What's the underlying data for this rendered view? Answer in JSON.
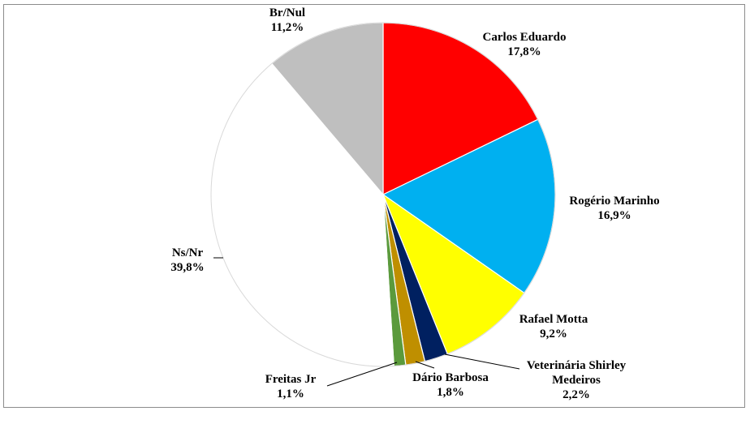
{
  "chart_data": {
    "type": "pie",
    "title": "",
    "start_angle_deg": 0,
    "direction": "clockwise",
    "slices": [
      {
        "key": "carlos",
        "label_lines": [
          "Carlos Eduardo",
          "17,8%"
        ],
        "value": 17.8,
        "color": "#ff0000"
      },
      {
        "key": "rogerio",
        "label_lines": [
          "Rogério Marinho",
          "16,9%"
        ],
        "value": 16.9,
        "color": "#00b0f0"
      },
      {
        "key": "rafael",
        "label_lines": [
          "Rafael Motta",
          "9,2%"
        ],
        "value": 9.2,
        "color": "#ffff00"
      },
      {
        "key": "shirley",
        "label_lines": [
          "Veterinária Shirley",
          "Medeiros",
          "2,2%"
        ],
        "value": 2.2,
        "color": "#002060"
      },
      {
        "key": "dario",
        "label_lines": [
          "Dário Barbosa",
          "1,8%"
        ],
        "value": 1.8,
        "color": "#bf8f00"
      },
      {
        "key": "freitas",
        "label_lines": [
          "Freitas Jr",
          "1,1%"
        ],
        "value": 1.1,
        "color": "#5b9a3c"
      },
      {
        "key": "nsnr",
        "label_lines": [
          "Ns/Nr",
          "39,8%"
        ],
        "value": 39.8,
        "color": "#ffffff"
      },
      {
        "key": "brnul",
        "label_lines": [
          "Br/Nul",
          "11,2%"
        ],
        "value": 11.2,
        "color": "#bfbfbf"
      }
    ]
  }
}
